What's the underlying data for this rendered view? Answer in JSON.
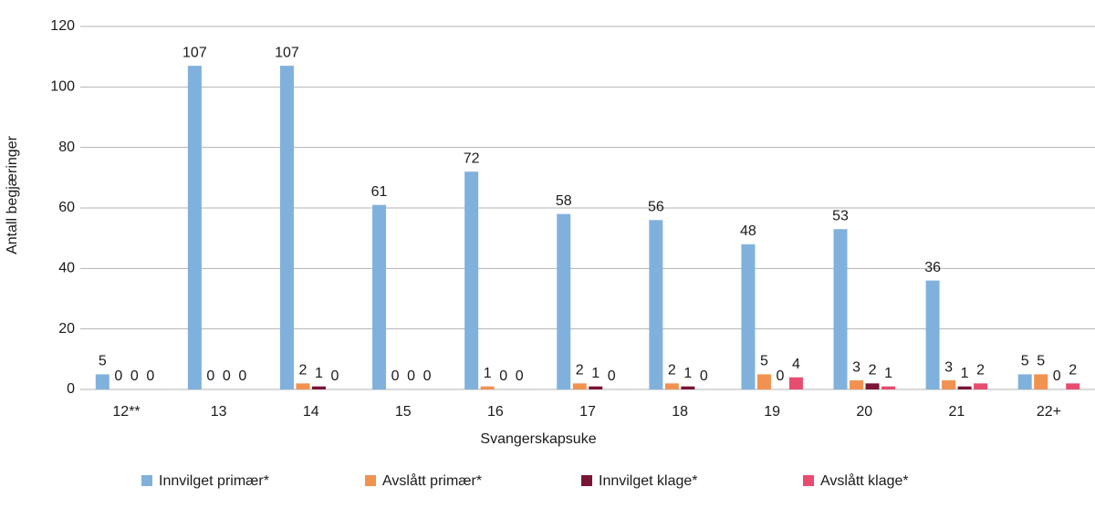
{
  "chart_data": {
    "type": "bar",
    "x_label": "Svangerskapsuke",
    "y_label": "Antall begjæringer",
    "categories": [
      "12**",
      "13",
      "14",
      "15",
      "16",
      "17",
      "18",
      "19",
      "20",
      "21",
      "22+"
    ],
    "series": [
      {
        "name": "Innvilget primær*",
        "color": "#80b1dd",
        "values": [
          5,
          107,
          107,
          61,
          72,
          58,
          56,
          48,
          53,
          36,
          5
        ]
      },
      {
        "name": "Avslått primær*",
        "color": "#f29250",
        "values": [
          0,
          0,
          2,
          0,
          1,
          2,
          2,
          5,
          3,
          3,
          5
        ]
      },
      {
        "name": "Innvilget klage*",
        "color": "#7a1538",
        "values": [
          0,
          0,
          1,
          0,
          0,
          1,
          1,
          0,
          2,
          1,
          0
        ]
      },
      {
        "name": "Avslått klage*",
        "color": "#e84c70",
        "values": [
          0,
          0,
          0,
          0,
          0,
          0,
          0,
          4,
          1,
          2,
          2
        ]
      }
    ],
    "ylim": [
      0,
      120
    ],
    "yticks": [
      0,
      20,
      40,
      60,
      80,
      100,
      120
    ],
    "grid": true,
    "legend": "bottom"
  }
}
